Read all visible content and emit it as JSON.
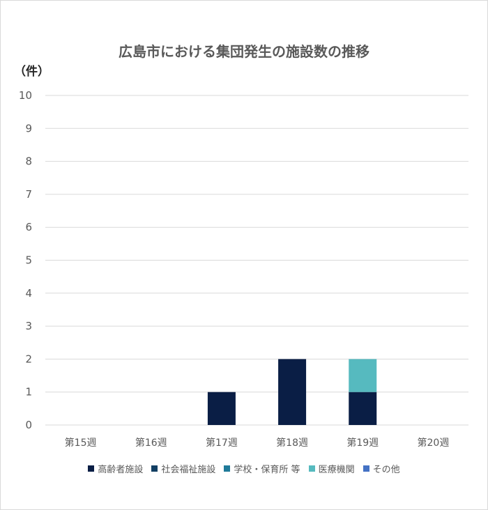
{
  "chart_data": {
    "type": "bar",
    "stacked": true,
    "title": "広島市における集団発生の施設数の推移",
    "unit_label": "（件）",
    "xlabel": "",
    "ylabel": "",
    "ylim": [
      0,
      10
    ],
    "y_ticks": [
      0,
      1,
      2,
      3,
      4,
      5,
      6,
      7,
      8,
      9,
      10
    ],
    "grid": true,
    "legend_position": "bottom",
    "categories": [
      "第15週",
      "第16週",
      "第17週",
      "第18週",
      "第19週",
      "第20週"
    ],
    "series": [
      {
        "name": "高齢者施設",
        "color": "#0a1e45",
        "values": [
          0,
          0,
          1,
          2,
          1,
          0
        ]
      },
      {
        "name": "社会福祉施設",
        "color": "#123f63",
        "values": [
          0,
          0,
          0,
          0,
          0,
          0
        ]
      },
      {
        "name": "学校・保育所 等",
        "color": "#1f7a99",
        "values": [
          0,
          0,
          0,
          0,
          0,
          0
        ]
      },
      {
        "name": "医療機関",
        "color": "#56babf",
        "values": [
          0,
          0,
          0,
          0,
          1,
          0
        ]
      },
      {
        "name": "その他",
        "color": "#4472c4",
        "values": [
          0,
          0,
          0,
          0,
          0,
          0
        ]
      }
    ]
  }
}
